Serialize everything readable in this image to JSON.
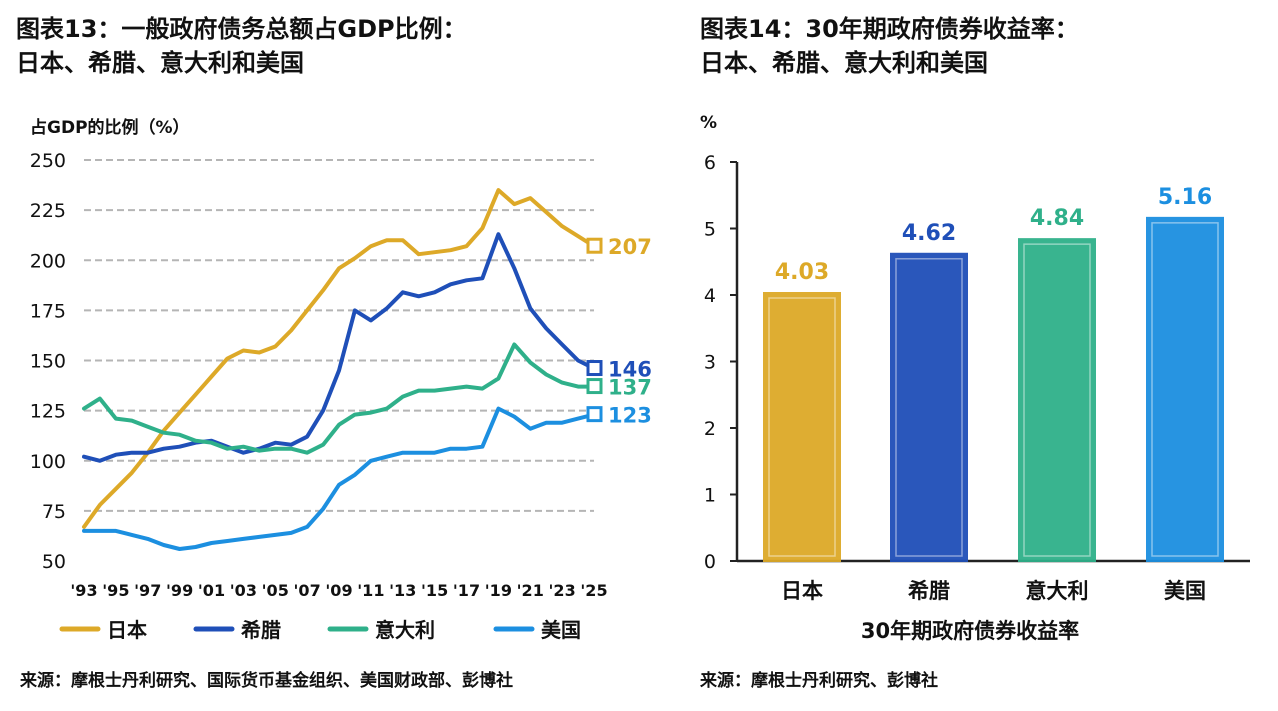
{
  "chart_data": [
    {
      "type": "line",
      "title_line1": "图表13：一般政府债务总额占GDP比例：",
      "title_line2": "日本、希腊、意大利和美国",
      "ylabel": "占GDP的比例（%）",
      "ylim": [
        50,
        250
      ],
      "yticks": [
        250,
        225,
        200,
        175,
        150,
        125,
        100,
        75,
        50
      ],
      "xlim": [
        1993,
        2025
      ],
      "xticks": [
        1993,
        1995,
        1997,
        1999,
        2001,
        2003,
        2005,
        2007,
        2009,
        2011,
        2013,
        2015,
        2017,
        2019,
        2021,
        2023,
        2025
      ],
      "xtick_labels": [
        "'93",
        "'95",
        "'97",
        "'99",
        "'01",
        "'03",
        "'05",
        "'07",
        "'09",
        "'11",
        "'13",
        "'15",
        "'17",
        "'19",
        "'21",
        "'23",
        "'25"
      ],
      "grid": true,
      "legend_position": "bottom",
      "x": [
        1993,
        1994,
        1995,
        1996,
        1997,
        1998,
        1999,
        2000,
        2001,
        2002,
        2003,
        2004,
        2005,
        2006,
        2007,
        2008,
        2009,
        2010,
        2011,
        2012,
        2013,
        2014,
        2015,
        2016,
        2017,
        2018,
        2019,
        2020,
        2021,
        2022,
        2023,
        2024,
        2025
      ],
      "series": [
        {
          "name": "日本",
          "color": "#DDA928",
          "end_label": "207",
          "values": [
            67,
            78,
            86,
            94,
            104,
            115,
            124,
            133,
            142,
            151,
            155,
            154,
            157,
            165,
            175,
            185,
            196,
            201,
            207,
            210,
            210,
            203,
            204,
            205,
            207,
            216,
            235,
            228,
            231,
            224,
            217,
            212,
            207
          ]
        },
        {
          "name": "希腊",
          "color": "#1F4FB8",
          "end_label": "146",
          "values": [
            102,
            100,
            103,
            104,
            104,
            106,
            107,
            109,
            110,
            107,
            104,
            106,
            109,
            108,
            112,
            125,
            145,
            175,
            170,
            176,
            184,
            182,
            184,
            188,
            190,
            191,
            213,
            196,
            176,
            166,
            158,
            150,
            146
          ]
        },
        {
          "name": "意大利",
          "color": "#2FB08A",
          "end_label": "137",
          "values": [
            126,
            131,
            121,
            120,
            117,
            114,
            113,
            110,
            109,
            106,
            107,
            105,
            106,
            106,
            104,
            108,
            118,
            123,
            124,
            126,
            132,
            135,
            135,
            136,
            137,
            136,
            141,
            158,
            149,
            143,
            139,
            137,
            137
          ]
        },
        {
          "name": "美国",
          "color": "#1C8FE0",
          "end_label": "123",
          "values": [
            65,
            65,
            65,
            63,
            61,
            58,
            56,
            57,
            59,
            60,
            61,
            62,
            63,
            64,
            67,
            76,
            88,
            93,
            100,
            102,
            104,
            104,
            104,
            106,
            106,
            107,
            126,
            122,
            116,
            119,
            119,
            121,
            123
          ]
        }
      ],
      "source": "来源：摩根士丹利研究、国际货币基金组织、美国财政部、彭博社"
    },
    {
      "type": "bar",
      "title_line1": "图表14：30年期政府债券收益率：",
      "title_line2": "日本、希腊、意大利和美国",
      "ylabel": "%",
      "ylim": [
        0,
        6
      ],
      "yticks": [
        6,
        5,
        4,
        3,
        2,
        1,
        0
      ],
      "xlabel": "30年期政府债券收益率",
      "categories": [
        "日本",
        "希腊",
        "意大利",
        "美国"
      ],
      "values": [
        4.03,
        4.62,
        4.84,
        5.16
      ],
      "value_labels": [
        "4.03",
        "4.62",
        "4.84",
        "5.16"
      ],
      "colors": [
        "#DDA928",
        "#1F4FB8",
        "#2FB08A",
        "#1C8FE0"
      ],
      "grid": false,
      "source": "来源：摩根士丹利研究、彭博社"
    }
  ]
}
